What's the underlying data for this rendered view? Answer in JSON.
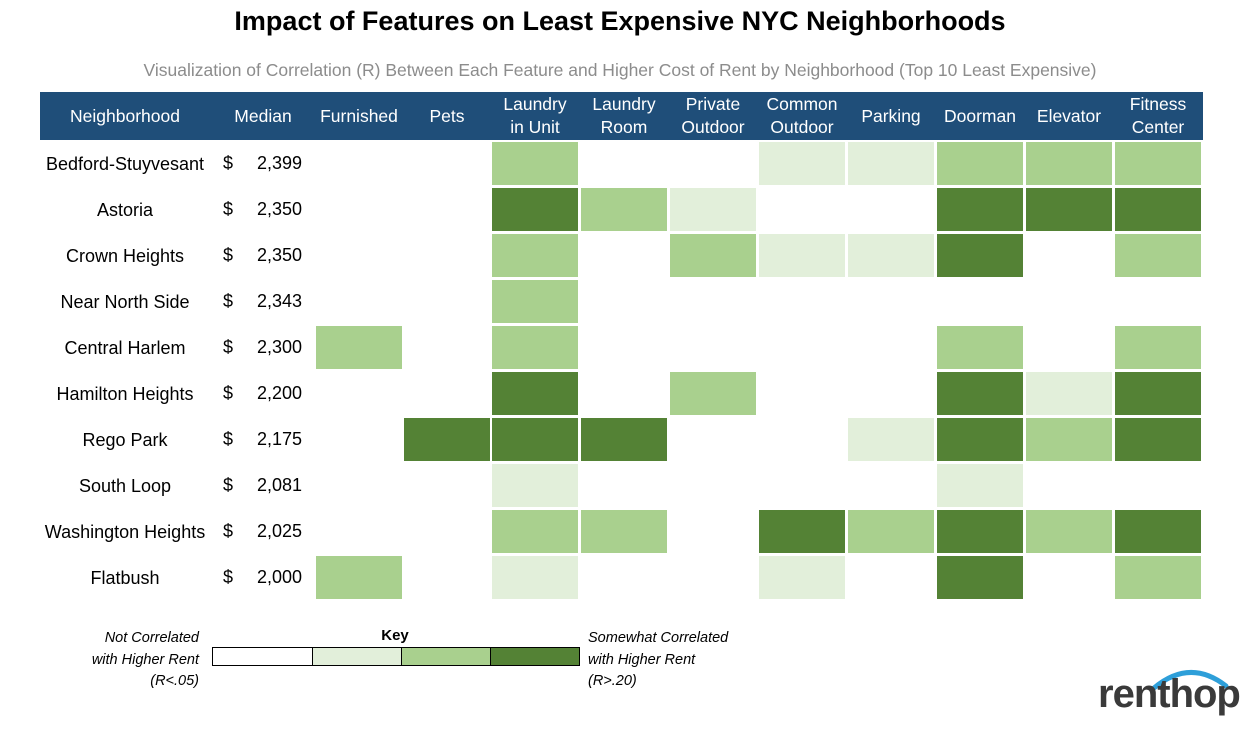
{
  "title": "Impact of Features on Least Expensive NYC Neighborhoods",
  "subtitle": "Visualization of Correlation (R) Between Each Feature and Higher Cost of Rent by Neighborhood (Top 10 Least Expensive)",
  "colors": {
    "header_bg": "#1f4e79",
    "level_0": "#ffffff",
    "level_1": "#e2efda",
    "level_2": "#a9d08e",
    "level_3": "#548235",
    "logo_text": "#3a3a3a",
    "logo_arc": "#2e9fd9"
  },
  "columns": {
    "neighborhood": "Neighborhood",
    "median": "Median",
    "features": [
      "Furnished",
      "Pets",
      "Laundry\nin Unit",
      "Laundry\nRoom",
      "Private\nOutdoor",
      "Common\nOutdoor",
      "Parking",
      "Doorman",
      "Elevator",
      "Fitness\nCenter"
    ]
  },
  "chart_data": {
    "type": "heatmap",
    "title": "Impact of Features on Least Expensive NYC Neighborhoods",
    "subtitle": "Visualization of Correlation (R) Between Each Feature and Higher Cost of Rent by Neighborhood (Top 10 Least Expensive)",
    "x": [
      "Furnished",
      "Pets",
      "Laundry in Unit",
      "Laundry Room",
      "Private Outdoor",
      "Common Outdoor",
      "Parking",
      "Doorman",
      "Elevator",
      "Fitness Center"
    ],
    "y": [
      "Bedford-Stuyvesant",
      "Astoria",
      "Crown Heights",
      "Near North Side",
      "Central Harlem",
      "Hamilton Heights",
      "Rego Park",
      "South Loop",
      "Washington Heights",
      "Flatbush"
    ],
    "median_rent": [
      {
        "dollar": "$",
        "amount": "2,399"
      },
      {
        "dollar": "$",
        "amount": "2,350"
      },
      {
        "dollar": "$",
        "amount": "2,350"
      },
      {
        "dollar": "$",
        "amount": "2,343"
      },
      {
        "dollar": "$",
        "amount": "2,300"
      },
      {
        "dollar": "$",
        "amount": "2,200"
      },
      {
        "dollar": "$",
        "amount": "2,175"
      },
      {
        "dollar": "$",
        "amount": "2,081"
      },
      {
        "dollar": "$",
        "amount": "2,025"
      },
      {
        "dollar": "$",
        "amount": "2,000"
      }
    ],
    "levels": [
      [
        0,
        0,
        2,
        0,
        0,
        1,
        1,
        2,
        2,
        2
      ],
      [
        0,
        0,
        3,
        2,
        1,
        0,
        0,
        3,
        3,
        3
      ],
      [
        0,
        0,
        2,
        0,
        2,
        1,
        1,
        3,
        0,
        2
      ],
      [
        0,
        0,
        2,
        0,
        0,
        0,
        0,
        0,
        0,
        0
      ],
      [
        2,
        0,
        2,
        0,
        0,
        0,
        0,
        2,
        0,
        2
      ],
      [
        0,
        0,
        3,
        0,
        2,
        0,
        0,
        3,
        1,
        3
      ],
      [
        0,
        3,
        3,
        3,
        0,
        0,
        1,
        3,
        2,
        3
      ],
      [
        0,
        0,
        1,
        0,
        0,
        0,
        0,
        1,
        0,
        0
      ],
      [
        0,
        0,
        2,
        2,
        0,
        3,
        2,
        3,
        2,
        3
      ],
      [
        2,
        0,
        1,
        0,
        0,
        1,
        0,
        3,
        0,
        2
      ]
    ]
  },
  "key": {
    "title": "Key",
    "left_label": "Not Correlated\nwith Higher Rent\n(R<.05)",
    "right_label": "Somewhat Correlated\nwith Higher Rent\n(R>.20)",
    "levels": [
      0,
      1,
      2,
      3
    ]
  },
  "logo": {
    "text": "renthop"
  }
}
